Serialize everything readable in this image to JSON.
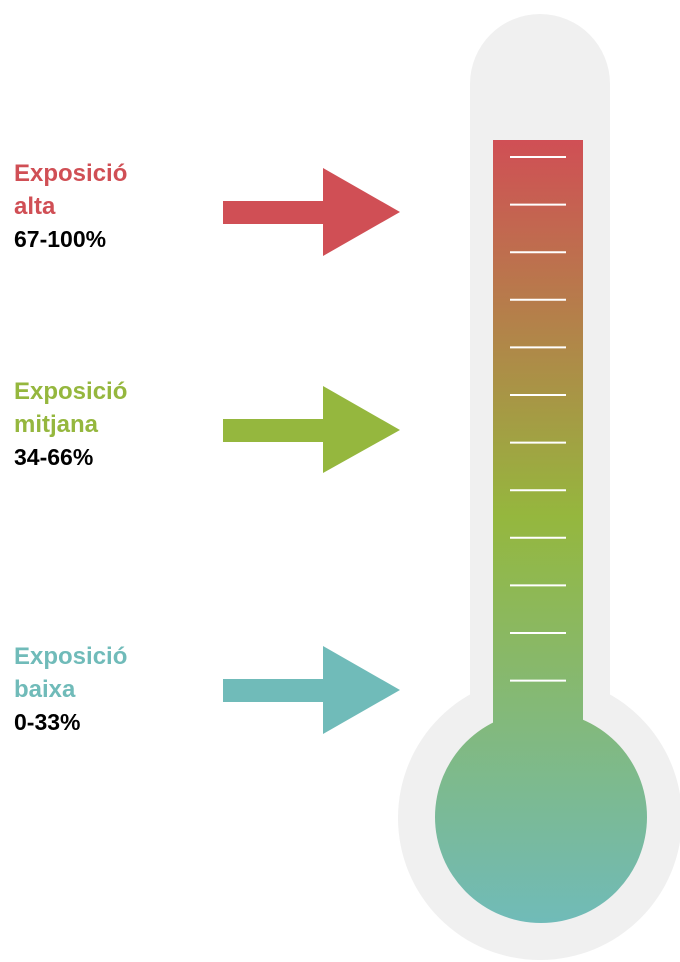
{
  "levels": [
    {
      "line1": "Exposició",
      "line2": "alta",
      "range": "67-100%",
      "color": "#d04f55"
    },
    {
      "line1": "Exposició",
      "line2": "mitjana",
      "range": "34-66%",
      "color": "#95b73e"
    },
    {
      "line1": "Exposició",
      "line2": "baixa",
      "range": "0-33%",
      "color": "#70bbb9"
    }
  ],
  "thermometer": {
    "outline_color": "#f0f0f0",
    "gradient_top": "#d04f55",
    "gradient_middle": "#95b73e",
    "gradient_bottom": "#70bbb9",
    "tick_count": 12
  }
}
